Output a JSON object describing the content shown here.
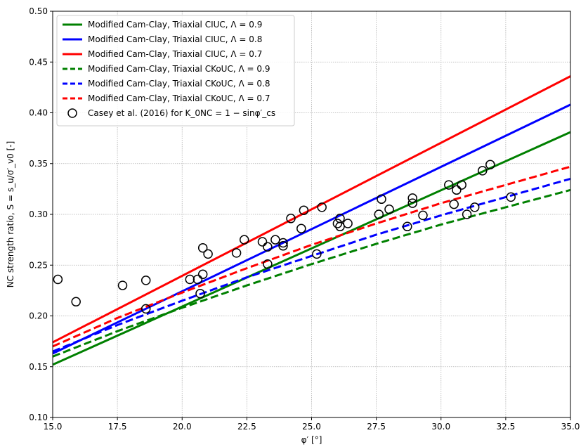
{
  "chart_data": {
    "type": "line",
    "xlabel": "φ′ [°]",
    "ylabel": "NC strength ratio, S = s_u/σ′_v0 [-]",
    "xlim": [
      15.0,
      35.0
    ],
    "ylim": [
      0.1,
      0.5
    ],
    "xticks": [
      "15.0",
      "17.5",
      "20.0",
      "22.5",
      "25.0",
      "27.5",
      "30.0",
      "32.5",
      "35.0"
    ],
    "yticks": [
      "0.10",
      "0.15",
      "0.20",
      "0.25",
      "0.30",
      "0.35",
      "0.40",
      "0.45",
      "0.50"
    ],
    "grid": true,
    "legend_position": "top-left",
    "series": [
      {
        "name": "Modified Cam-Clay, Triaxial CIUC, Λ = 0.9",
        "style": "solid",
        "color": "#008000",
        "x": [
          15,
          35
        ],
        "y": [
          0.152,
          0.381
        ]
      },
      {
        "name": "Modified Cam-Clay, Triaxial CIUC, Λ = 0.8",
        "style": "solid",
        "color": "#0000ff",
        "x": [
          15,
          35
        ],
        "y": [
          0.163,
          0.408
        ]
      },
      {
        "name": "Modified Cam-Clay, Triaxial CIUC, Λ = 0.7",
        "style": "solid",
        "color": "#ff0000",
        "x": [
          15,
          35
        ],
        "y": [
          0.174,
          0.436
        ]
      },
      {
        "name": "Modified Cam-Clay, Triaxial CKoUC, Λ = 0.9",
        "style": "dashed",
        "color": "#008000",
        "x": [
          15,
          17.5,
          20,
          22.5,
          25,
          27.5,
          30,
          32.5,
          35
        ],
        "y": [
          0.16,
          0.185,
          0.208,
          0.23,
          0.251,
          0.271,
          0.29,
          0.307,
          0.324
        ]
      },
      {
        "name": "Modified Cam-Clay, Triaxial CKoUC, Λ = 0.8",
        "style": "dashed",
        "color": "#0000ff",
        "x": [
          15,
          17.5,
          20,
          22.5,
          25,
          27.5,
          30,
          32.5,
          35
        ],
        "y": [
          0.165,
          0.191,
          0.215,
          0.238,
          0.259,
          0.28,
          0.299,
          0.317,
          0.335
        ]
      },
      {
        "name": "Modified Cam-Clay, Triaxial CKoUC, Λ = 0.7",
        "style": "dashed",
        "color": "#ff0000",
        "x": [
          15,
          17.5,
          20,
          22.5,
          25,
          27.5,
          30,
          32.5,
          35
        ],
        "y": [
          0.17,
          0.198,
          0.223,
          0.247,
          0.27,
          0.291,
          0.311,
          0.329,
          0.347
        ]
      }
    ],
    "scatter": {
      "name": "Casey et al. (2016) for K_0NC = 1 − sinφ′_cs",
      "marker": "open-circle",
      "points": [
        [
          15.2,
          0.236
        ],
        [
          15.9,
          0.214
        ],
        [
          17.7,
          0.23
        ],
        [
          18.6,
          0.235
        ],
        [
          18.6,
          0.207
        ],
        [
          20.3,
          0.236
        ],
        [
          20.6,
          0.236
        ],
        [
          20.7,
          0.222
        ],
        [
          20.8,
          0.241
        ],
        [
          20.8,
          0.267
        ],
        [
          21.0,
          0.261
        ],
        [
          22.1,
          0.262
        ],
        [
          22.4,
          0.275
        ],
        [
          23.1,
          0.273
        ],
        [
          23.3,
          0.268
        ],
        [
          23.3,
          0.251
        ],
        [
          23.6,
          0.275
        ],
        [
          23.9,
          0.272
        ],
        [
          23.9,
          0.269
        ],
        [
          24.2,
          0.296
        ],
        [
          24.6,
          0.286
        ],
        [
          24.7,
          0.304
        ],
        [
          25.2,
          0.261
        ],
        [
          25.4,
          0.307
        ],
        [
          26.0,
          0.291
        ],
        [
          26.1,
          0.296
        ],
        [
          26.1,
          0.288
        ],
        [
          26.4,
          0.291
        ],
        [
          27.6,
          0.3
        ],
        [
          27.7,
          0.315
        ],
        [
          28.0,
          0.305
        ],
        [
          28.7,
          0.288
        ],
        [
          28.9,
          0.316
        ],
        [
          28.9,
          0.311
        ],
        [
          29.3,
          0.299
        ],
        [
          30.3,
          0.329
        ],
        [
          30.5,
          0.31
        ],
        [
          30.6,
          0.324
        ],
        [
          30.8,
          0.329
        ],
        [
          31.0,
          0.3
        ],
        [
          31.3,
          0.307
        ],
        [
          31.6,
          0.343
        ],
        [
          31.9,
          0.349
        ],
        [
          32.7,
          0.317
        ]
      ]
    }
  }
}
